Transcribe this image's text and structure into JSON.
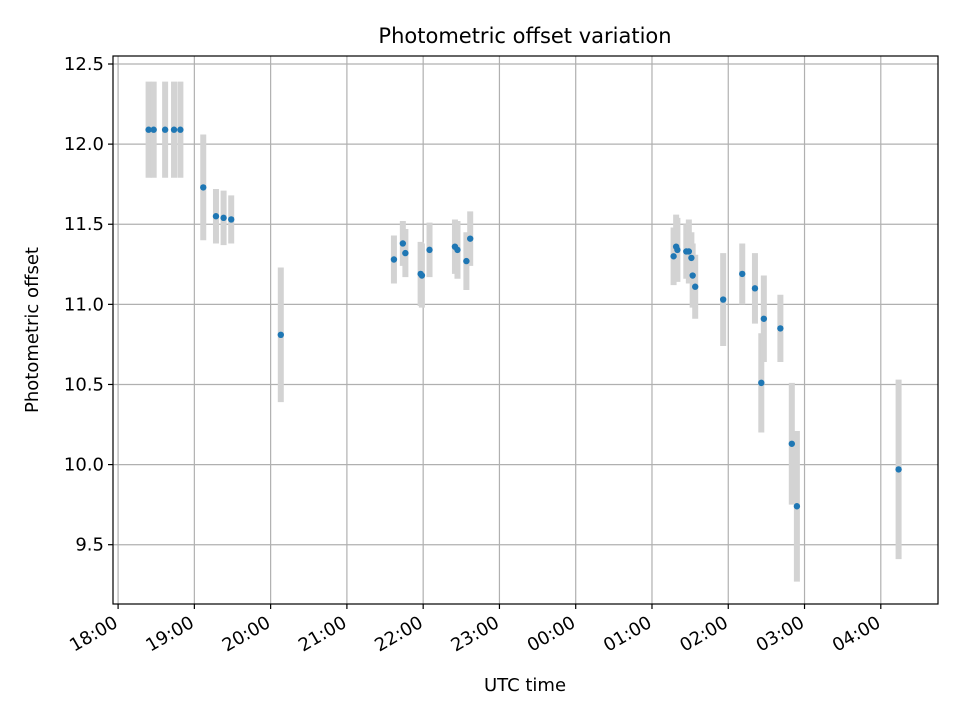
{
  "chart_data": {
    "type": "scatter",
    "title": "Photometric offset variation",
    "xlabel": "UTC time",
    "ylabel": "Photometric offset",
    "x_ticks": [
      "18:00",
      "19:00",
      "20:00",
      "21:00",
      "22:00",
      "23:00",
      "00:00",
      "01:00",
      "02:00",
      "03:00",
      "04:00"
    ],
    "y_ticks": [
      "9.5",
      "10.0",
      "10.5",
      "11.0",
      "11.5",
      "12.0",
      "12.5"
    ],
    "xlim": [
      "17:56",
      "04:45"
    ],
    "ylim": [
      9.13,
      12.55
    ],
    "grid": true,
    "marker_color": "#1f77b4",
    "errorbar_color": "#d3d3d3",
    "points": [
      {
        "x": "18:24",
        "y": 12.09,
        "err": 0.3
      },
      {
        "x": "18:28",
        "y": 12.09,
        "err": 0.3
      },
      {
        "x": "18:37",
        "y": 12.09,
        "err": 0.3
      },
      {
        "x": "18:44",
        "y": 12.09,
        "err": 0.3
      },
      {
        "x": "18:49",
        "y": 12.09,
        "err": 0.3
      },
      {
        "x": "19:07",
        "y": 11.73,
        "err": 0.33
      },
      {
        "x": "19:17",
        "y": 11.55,
        "err": 0.17
      },
      {
        "x": "19:23",
        "y": 11.54,
        "err": 0.17
      },
      {
        "x": "19:29",
        "y": 11.53,
        "err": 0.15
      },
      {
        "x": "20:08",
        "y": 10.81,
        "err": 0.42
      },
      {
        "x": "21:37",
        "y": 11.28,
        "err": 0.15
      },
      {
        "x": "21:44",
        "y": 11.38,
        "err": 0.14
      },
      {
        "x": "21:46",
        "y": 11.32,
        "err": 0.15
      },
      {
        "x": "21:58",
        "y": 11.19,
        "err": 0.2
      },
      {
        "x": "21:59",
        "y": 11.18,
        "err": 0.2
      },
      {
        "x": "22:05",
        "y": 11.34,
        "err": 0.17
      },
      {
        "x": "22:25",
        "y": 11.36,
        "err": 0.17
      },
      {
        "x": "22:27",
        "y": 11.34,
        "err": 0.18
      },
      {
        "x": "22:34",
        "y": 11.27,
        "err": 0.18
      },
      {
        "x": "22:37",
        "y": 11.41,
        "err": 0.17
      },
      {
        "x": "01:17",
        "y": 11.3,
        "err": 0.18
      },
      {
        "x": "01:19",
        "y": 11.36,
        "err": 0.2
      },
      {
        "x": "01:20",
        "y": 11.34,
        "err": 0.2
      },
      {
        "x": "01:27",
        "y": 11.33,
        "err": 0.17
      },
      {
        "x": "01:29",
        "y": 11.33,
        "err": 0.2
      },
      {
        "x": "01:31",
        "y": 11.29,
        "err": 0.16
      },
      {
        "x": "01:32",
        "y": 11.18,
        "err": 0.2
      },
      {
        "x": "01:34",
        "y": 11.11,
        "err": 0.2
      },
      {
        "x": "01:56",
        "y": 11.03,
        "err": 0.29
      },
      {
        "x": "02:11",
        "y": 11.19,
        "err": 0.19
      },
      {
        "x": "02:21",
        "y": 11.1,
        "err": 0.22
      },
      {
        "x": "02:26",
        "y": 10.51,
        "err": 0.31
      },
      {
        "x": "02:28",
        "y": 10.91,
        "err": 0.27
      },
      {
        "x": "02:41",
        "y": 10.85,
        "err": 0.21
      },
      {
        "x": "02:50",
        "y": 10.13,
        "err": 0.38
      },
      {
        "x": "02:54",
        "y": 9.74,
        "err": 0.47
      },
      {
        "x": "04:14",
        "y": 9.97,
        "err": 0.56
      }
    ]
  }
}
